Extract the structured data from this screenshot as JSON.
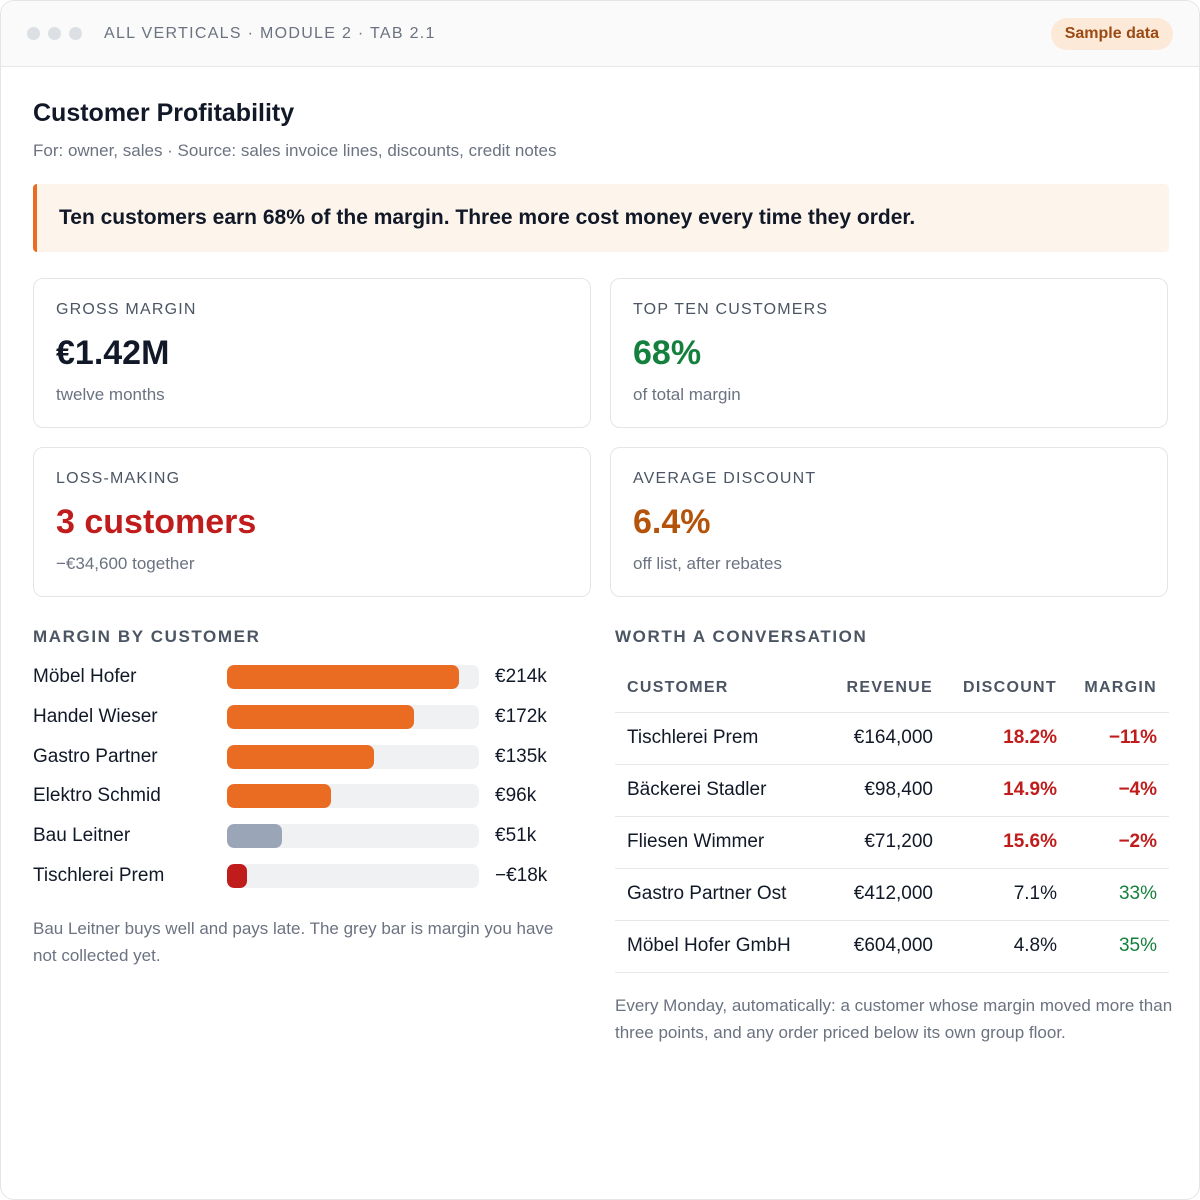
{
  "window": {
    "breadcrumb": "ALL VERTICALS · MODULE 2 · TAB 2.1",
    "badge": "Sample data"
  },
  "page": {
    "title": "Customer Profitability",
    "subtitle": "For: owner, sales · Source: sales invoice lines, discounts, credit notes",
    "callout": "Ten customers earn 68% of the margin. Three more cost money every time they order."
  },
  "kpis": [
    {
      "label": "GROSS MARGIN",
      "value": "€1.42M",
      "note": "twelve months",
      "color": "#111827"
    },
    {
      "label": "TOP TEN CUSTOMERS",
      "value": "68%",
      "note": "of total margin",
      "color": "#15803d"
    },
    {
      "label": "LOSS-MAKING",
      "value": "3 customers",
      "note": "−€34,600 together",
      "color": "#c01c1c"
    },
    {
      "label": "AVERAGE DISCOUNT",
      "value": "6.4%",
      "note": "off list, after rebates",
      "color": "#b45309"
    }
  ],
  "margin_by_customer": {
    "title": "MARGIN BY CUSTOMER",
    "note": "Bau Leitner buys well and pays late. The grey bar is margin you have not collected yet.",
    "colors": {
      "positive": "#ea6c22",
      "uncollected": "#9aa5b8",
      "negative": "#c01c1c",
      "track": "#eff1f3"
    }
  },
  "chart_data": {
    "type": "bar",
    "orientation": "horizontal",
    "categories": [
      "Möbel Hofer",
      "Handel Wieser",
      "Gastro Partner",
      "Elektro Schmid",
      "Bau Leitner",
      "Tischlerei Prem"
    ],
    "values": [
      214,
      172,
      135,
      96,
      51,
      -18
    ],
    "value_labels": [
      "€214k",
      "€172k",
      "€135k",
      "€96k",
      "€51k",
      "−€18k"
    ],
    "bar_kinds": [
      "positive",
      "positive",
      "positive",
      "positive",
      "uncollected",
      "negative"
    ],
    "unit": "€k",
    "xlim": [
      0,
      232
    ],
    "grid": false,
    "legend": "none"
  },
  "conversation": {
    "title": "WORTH A CONVERSATION",
    "columns": [
      "CUSTOMER",
      "REVENUE",
      "DISCOUNT",
      "MARGIN"
    ],
    "rows": [
      {
        "customer": "Tischlerei Prem",
        "revenue": "€164,000",
        "discount": "18.2%",
        "margin": "−11%",
        "discount_flag": "high",
        "margin_flag": "negative"
      },
      {
        "customer": "Bäckerei Stadler",
        "revenue": "€98,400",
        "discount": "14.9%",
        "margin": "−4%",
        "discount_flag": "high",
        "margin_flag": "negative"
      },
      {
        "customer": "Fliesen Wimmer",
        "revenue": "€71,200",
        "discount": "15.6%",
        "margin": "−2%",
        "discount_flag": "high",
        "margin_flag": "negative"
      },
      {
        "customer": "Gastro Partner Ost",
        "revenue": "€412,000",
        "discount": "7.1%",
        "margin": "33%",
        "discount_flag": "normal",
        "margin_flag": "positive"
      },
      {
        "customer": "Möbel Hofer GmbH",
        "revenue": "€604,000",
        "discount": "4.8%",
        "margin": "35%",
        "discount_flag": "normal",
        "margin_flag": "positive"
      }
    ],
    "note": "Every Monday, automatically: a customer whose margin moved more than three points, and any order priced below its own group floor."
  }
}
